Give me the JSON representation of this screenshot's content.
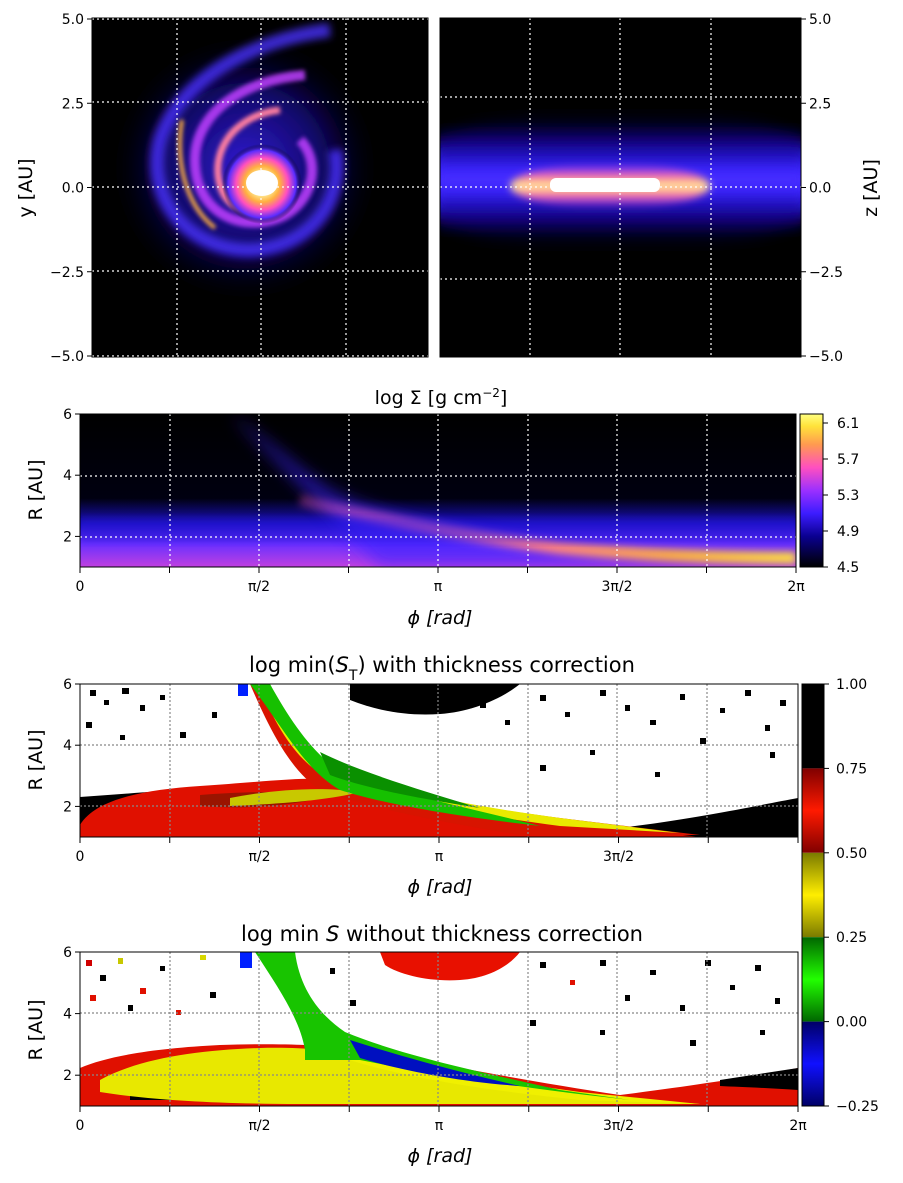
{
  "chart_data": [
    {
      "type": "heatmap",
      "panel": "face-on",
      "xlabel": "",
      "ylabel": "y [AU]",
      "ylim": [
        -5.0,
        5.0
      ],
      "yticks": [
        "5.0",
        "2.5",
        "0.0",
        "−2.5",
        "−5.0"
      ],
      "grid": true,
      "colormap": "gnuplot2"
    },
    {
      "type": "heatmap",
      "panel": "edge-on",
      "xlabel": "",
      "ylabel": "z [AU]",
      "ylim": [
        -5.0,
        5.0
      ],
      "yticks": [
        "5.0",
        "2.5",
        "0.0",
        "−2.5",
        "−5.0"
      ],
      "grid": true,
      "colormap": "gnuplot2"
    },
    {
      "type": "heatmap",
      "panel": "polar-surface-density",
      "title": "log Σ  [g cm⁻²]",
      "xlabel": "ϕ [rad]",
      "ylabel": "R [AU]",
      "xticks": [
        "0",
        "π/2",
        "π",
        "3π/2",
        "2π"
      ],
      "yticks": [
        "6",
        "4",
        "2"
      ],
      "ylim": [
        1,
        6
      ],
      "colorbar": {
        "ticks": [
          "6.1",
          "5.7",
          "5.3",
          "4.9",
          "4.5"
        ],
        "range": [
          4.5,
          6.2
        ]
      },
      "grid": true
    },
    {
      "type": "heatmap",
      "panel": "stability-with-correction",
      "title_left": "log min(Sₜ)",
      "title_right": "with thickness correction",
      "xlabel": "ϕ [rad]",
      "ylabel": "R [AU]",
      "xticks": [
        "0",
        "π/2",
        "π",
        "3π/2"
      ],
      "yticks": [
        "6",
        "4",
        "2"
      ],
      "ylim": [
        1,
        6
      ],
      "grid": true
    },
    {
      "type": "heatmap",
      "panel": "stability-without-correction",
      "title_left": "log min S",
      "title_right": "without thickness correction",
      "xlabel": "ϕ [rad]",
      "ylabel": "R [AU]",
      "xticks": [
        "0",
        "π/2",
        "π",
        "3π/2",
        "2π"
      ],
      "yticks": [
        "6",
        "4",
        "2"
      ],
      "ylim": [
        1,
        6
      ],
      "colorbar": {
        "ticks": [
          "1.00",
          "0.75",
          "0.50",
          "0.25",
          "0.00",
          "−0.25"
        ],
        "range": [
          -0.25,
          1.0
        ],
        "bands": [
          {
            "from": 0.75,
            "to": 1.0,
            "colors": [
              "#000000",
              "#000000"
            ]
          },
          {
            "from": 0.5,
            "to": 0.75,
            "colors": [
              "#ff1a00",
              "#800000"
            ]
          },
          {
            "from": 0.25,
            "to": 0.5,
            "colors": [
              "#ffee00",
              "#7a7a00"
            ]
          },
          {
            "from": 0.0,
            "to": 0.25,
            "colors": [
              "#22ff00",
              "#006600"
            ]
          },
          {
            "from": -0.25,
            "to": 0.0,
            "colors": [
              "#1010ff",
              "#000066"
            ]
          }
        ]
      },
      "grid": true
    }
  ]
}
